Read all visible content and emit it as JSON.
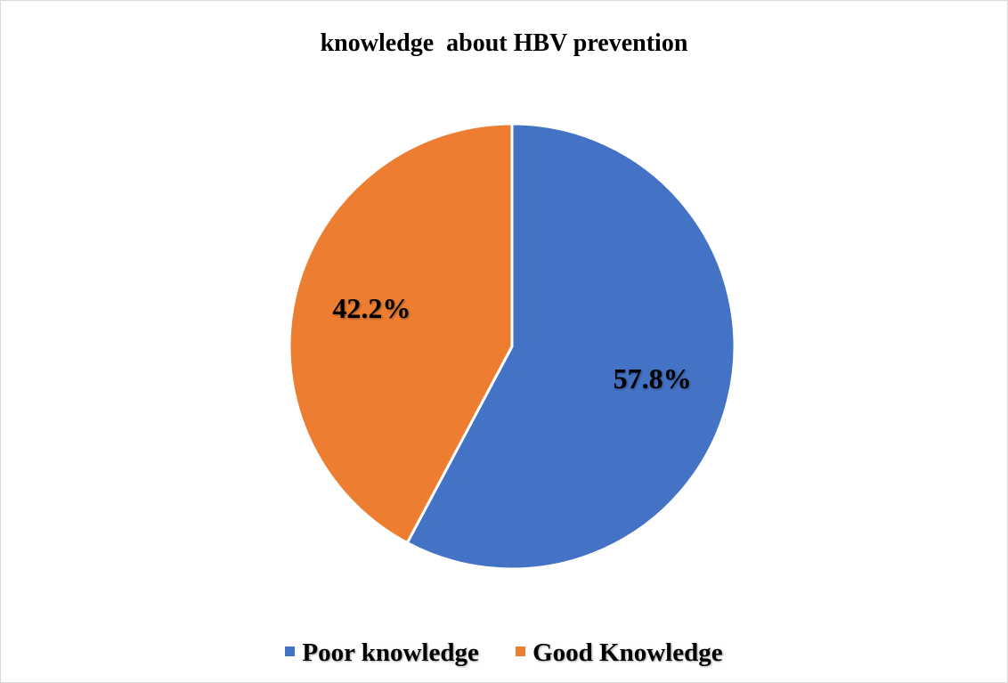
{
  "chart_data": {
    "type": "pie",
    "title": "knowledge  about HBV prevention",
    "slices": [
      {
        "name": "Poor knowledge",
        "value": 57.8,
        "label": "57.8%",
        "color": "#4472C4"
      },
      {
        "name": "Good Knowledge",
        "value": 42.2,
        "label": "42.2%",
        "color": "#ED7D31"
      }
    ],
    "start_angle": "12 o'clock",
    "direction": "clockwise",
    "legend_position": "bottom"
  }
}
